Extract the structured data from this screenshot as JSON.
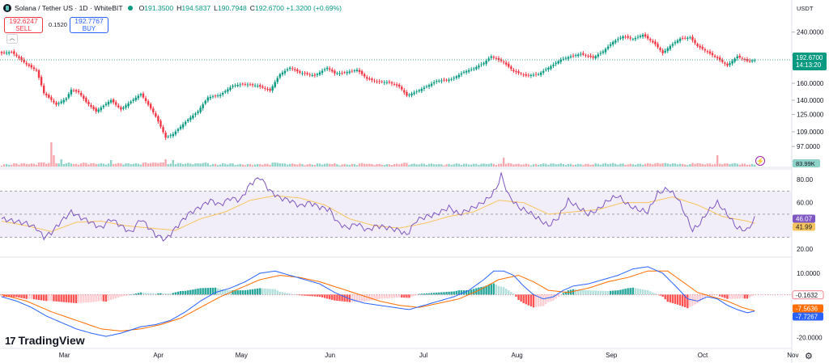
{
  "header": {
    "symbol": "Solana / Tether US · 1D · WhiteBIT",
    "o_label": "O",
    "o_value": "191.3500",
    "h_label": "H",
    "h_value": "194.5837",
    "l_label": "L",
    "l_value": "190.7948",
    "c_label": "C",
    "c_value": "192.6700 +1.3200 (+0.69%)"
  },
  "sell_box": {
    "price": "192.6247",
    "label": "SELL"
  },
  "buy_box": {
    "price": "192.7767",
    "label": "BUY"
  },
  "spread": "0.1520",
  "collapse_icon": "chevron-up-icon",
  "brand": {
    "logo": "tradingview-logo-icon",
    "name": "TradingView"
  },
  "colors": {
    "up": "#089981",
    "down": "#f23645",
    "rsi": "#7e57c2",
    "rsi_ma": "#f7c55f",
    "macd": "#2962ff",
    "signal": "#ff6d00"
  },
  "chart_data": [
    {
      "type": "candlestick",
      "title": "Solana / Tether US · 1D · WhiteBIT",
      "currency": "USDT",
      "scale": "log",
      "x_labels": [
        "Mar",
        "Apr",
        "May",
        "Jun",
        "Jul",
        "Aug",
        "Sep",
        "Oct",
        "Nov"
      ],
      "y_ticks": [
        "240.0000",
        "200.0000",
        "160.0000",
        "140.0000",
        "125.0000",
        "109.0000",
        "97.0000"
      ],
      "ylim": [
        86,
        262
      ],
      "last_price": "192.6700",
      "countdown": "14:13:20",
      "anchors": [
        [
          0,
          203
        ],
        [
          4,
          205
        ],
        [
          10,
          186
        ],
        [
          14,
          177
        ],
        [
          17,
          148
        ],
        [
          22,
          135
        ],
        [
          26,
          142
        ],
        [
          28,
          152
        ],
        [
          31,
          149
        ],
        [
          34,
          138
        ],
        [
          38,
          128
        ],
        [
          44,
          140
        ],
        [
          48,
          130
        ],
        [
          56,
          147
        ],
        [
          62,
          123
        ],
        [
          66,
          104
        ],
        [
          69,
          107
        ],
        [
          75,
          120
        ],
        [
          79,
          128
        ],
        [
          83,
          143
        ],
        [
          88,
          146
        ],
        [
          93,
          157
        ],
        [
          97,
          159
        ],
        [
          103,
          157
        ],
        [
          108,
          151
        ],
        [
          112,
          172
        ],
        [
          116,
          181
        ],
        [
          120,
          174
        ],
        [
          126,
          170
        ],
        [
          131,
          181
        ],
        [
          134,
          173
        ],
        [
          138,
          174
        ],
        [
          143,
          178
        ],
        [
          147,
          166
        ],
        [
          151,
          162
        ],
        [
          156,
          161
        ],
        [
          160,
          156
        ],
        [
          163,
          145
        ],
        [
          167,
          150
        ],
        [
          171,
          156
        ],
        [
          175,
          163
        ],
        [
          181,
          165
        ],
        [
          186,
          175
        ],
        [
          190,
          180
        ],
        [
          194,
          188
        ],
        [
          197,
          198
        ],
        [
          202,
          189
        ],
        [
          206,
          176
        ],
        [
          211,
          170
        ],
        [
          216,
          172
        ],
        [
          221,
          183
        ],
        [
          225,
          193
        ],
        [
          229,
          198
        ],
        [
          233,
          202
        ],
        [
          238,
          196
        ],
        [
          242,
          206
        ],
        [
          246,
          222
        ],
        [
          250,
          232
        ],
        [
          254,
          227
        ],
        [
          258,
          235
        ],
        [
          263,
          218
        ],
        [
          266,
          203
        ],
        [
          269,
          215
        ],
        [
          273,
          228
        ],
        [
          277,
          230
        ],
        [
          280,
          215
        ],
        [
          284,
          205
        ],
        [
          288,
          195
        ],
        [
          292,
          184
        ],
        [
          296,
          198
        ],
        [
          300,
          191
        ],
        [
          303,
          192
        ]
      ],
      "last_index": 303
    },
    {
      "type": "bar",
      "title": "Volume",
      "value_label": "83.99K"
    },
    {
      "type": "line",
      "title": "RSI",
      "y_ticks": [
        "80.00",
        "60.00",
        "40.00",
        "20.00"
      ],
      "ylim": [
        15,
        87
      ],
      "bands": [
        30,
        50,
        70
      ],
      "series": [
        {
          "name": "RSI",
          "value_label": "46.07",
          "anchors": [
            [
              0,
              46
            ],
            [
              5,
              44
            ],
            [
              10,
              42
            ],
            [
              14,
              38
            ],
            [
              17,
              30
            ],
            [
              20,
              34
            ],
            [
              24,
              44
            ],
            [
              28,
              52
            ],
            [
              31,
              48
            ],
            [
              35,
              44
            ],
            [
              40,
              38
            ],
            [
              44,
              46
            ],
            [
              48,
              40
            ],
            [
              52,
              34
            ],
            [
              56,
              46
            ],
            [
              62,
              32
            ],
            [
              66,
              28
            ],
            [
              70,
              38
            ],
            [
              75,
              50
            ],
            [
              79,
              55
            ],
            [
              84,
              62
            ],
            [
              88,
              58
            ],
            [
              92,
              64
            ],
            [
              96,
              62
            ],
            [
              100,
              76
            ],
            [
              104,
              82
            ],
            [
              108,
              70
            ],
            [
              112,
              64
            ],
            [
              116,
              62
            ],
            [
              120,
              57
            ],
            [
              124,
              60
            ],
            [
              128,
              56
            ],
            [
              132,
              54
            ],
            [
              135,
              43
            ],
            [
              139,
              38
            ],
            [
              143,
              42
            ],
            [
              147,
              36
            ],
            [
              151,
              40
            ],
            [
              156,
              38
            ],
            [
              160,
              36
            ],
            [
              163,
              32
            ],
            [
              167,
              45
            ],
            [
              171,
              48
            ],
            [
              175,
              50
            ],
            [
              180,
              56
            ],
            [
              184,
              50
            ],
            [
              188,
              54
            ],
            [
              192,
              58
            ],
            [
              196,
              64
            ],
            [
              199,
              72
            ],
            [
              201,
              84
            ],
            [
              204,
              66
            ],
            [
              208,
              56
            ],
            [
              212,
              52
            ],
            [
              216,
              46
            ],
            [
              220,
              40
            ],
            [
              224,
              47
            ],
            [
              228,
              62
            ],
            [
              232,
              56
            ],
            [
              236,
              50
            ],
            [
              240,
              54
            ],
            [
              244,
              62
            ],
            [
              248,
              66
            ],
            [
              252,
              58
            ],
            [
              256,
              54
            ],
            [
              260,
              52
            ],
            [
              264,
              68
            ],
            [
              268,
              72
            ],
            [
              272,
              64
            ],
            [
              275,
              50
            ],
            [
              278,
              36
            ],
            [
              281,
              42
            ],
            [
              284,
              52
            ],
            [
              288,
              60
            ],
            [
              292,
              50
            ],
            [
              296,
              38
            ],
            [
              300,
              36
            ],
            [
              303,
              46
            ]
          ]
        },
        {
          "name": "RSI-based MA",
          "value_label": "41.99",
          "anchors": [
            [
              0,
              44
            ],
            [
              10,
              40
            ],
            [
              20,
              35
            ],
            [
              30,
              43
            ],
            [
              40,
              44
            ],
            [
              50,
              40
            ],
            [
              60,
              38
            ],
            [
              70,
              36
            ],
            [
              80,
              46
            ],
            [
              90,
              52
            ],
            [
              100,
              62
            ],
            [
              110,
              66
            ],
            [
              120,
              64
            ],
            [
              130,
              58
            ],
            [
              140,
              46
            ],
            [
              150,
              40
            ],
            [
              160,
              38
            ],
            [
              170,
              42
            ],
            [
              180,
              48
            ],
            [
              190,
              52
            ],
            [
              200,
              62
            ],
            [
              210,
              60
            ],
            [
              220,
              50
            ],
            [
              230,
              52
            ],
            [
              240,
              54
            ],
            [
              250,
              60
            ],
            [
              260,
              60
            ],
            [
              270,
              65
            ],
            [
              280,
              58
            ],
            [
              290,
              48
            ],
            [
              300,
              44
            ],
            [
              303,
              42
            ]
          ]
        }
      ]
    },
    {
      "type": "line",
      "title": "MACD",
      "y_ticks": [
        "10.0000",
        "0.0000",
        "-10.0000",
        "-20.0000"
      ],
      "ylim": [
        -24,
        16
      ],
      "series": [
        {
          "name": "MACD",
          "value_label": "-7.7267",
          "anchors": [
            [
              0,
              -1
            ],
            [
              6,
              -3
            ],
            [
              12,
              -6
            ],
            [
              18,
              -10
            ],
            [
              24,
              -13
            ],
            [
              30,
              -16
            ],
            [
              36,
              -18
            ],
            [
              42,
              -19.5
            ],
            [
              48,
              -18
            ],
            [
              56,
              -15
            ],
            [
              62,
              -14
            ],
            [
              68,
              -12
            ],
            [
              74,
              -8
            ],
            [
              80,
              -3
            ],
            [
              86,
              1
            ],
            [
              92,
              3
            ],
            [
              98,
              6
            ],
            [
              104,
              10
            ],
            [
              110,
              11
            ],
            [
              116,
              9
            ],
            [
              122,
              7
            ],
            [
              128,
              5
            ],
            [
              134,
              1
            ],
            [
              140,
              -2
            ],
            [
              146,
              -4
            ],
            [
              152,
              -5
            ],
            [
              158,
              -6
            ],
            [
              164,
              -7
            ],
            [
              170,
              -5
            ],
            [
              176,
              -3
            ],
            [
              182,
              -1
            ],
            [
              188,
              2
            ],
            [
              194,
              7
            ],
            [
              198,
              11
            ],
            [
              202,
              11
            ],
            [
              206,
              9
            ],
            [
              210,
              4
            ],
            [
              214,
              0
            ],
            [
              218,
              -2
            ],
            [
              222,
              -1
            ],
            [
              226,
              2
            ],
            [
              230,
              4
            ],
            [
              236,
              5
            ],
            [
              242,
              7
            ],
            [
              248,
              9
            ],
            [
              254,
              12
            ],
            [
              260,
              13
            ],
            [
              266,
              10
            ],
            [
              272,
              3
            ],
            [
              276,
              -2
            ],
            [
              280,
              -3
            ],
            [
              284,
              -1
            ],
            [
              288,
              -2
            ],
            [
              292,
              -5
            ],
            [
              296,
              -7
            ],
            [
              300,
              -8.5
            ],
            [
              303,
              -7.7
            ]
          ]
        },
        {
          "name": "Signal",
          "value_label": "-7.5636",
          "anchors": [
            [
              0,
              0
            ],
            [
              10,
              -3
            ],
            [
              20,
              -8
            ],
            [
              30,
              -12
            ],
            [
              40,
              -16
            ],
            [
              48,
              -17
            ],
            [
              56,
              -16
            ],
            [
              64,
              -14
            ],
            [
              72,
              -11
            ],
            [
              80,
              -6
            ],
            [
              88,
              -1
            ],
            [
              96,
              3
            ],
            [
              104,
              7
            ],
            [
              112,
              9
            ],
            [
              120,
              8
            ],
            [
              128,
              6
            ],
            [
              136,
              3
            ],
            [
              144,
              0
            ],
            [
              152,
              -3
            ],
            [
              160,
              -5
            ],
            [
              168,
              -6
            ],
            [
              176,
              -4
            ],
            [
              184,
              -2
            ],
            [
              192,
              2
            ],
            [
              200,
              7
            ],
            [
              208,
              9
            ],
            [
              214,
              6
            ],
            [
              220,
              2
            ],
            [
              228,
              1
            ],
            [
              236,
              3
            ],
            [
              244,
              6
            ],
            [
              252,
              8
            ],
            [
              260,
              11
            ],
            [
              268,
              11
            ],
            [
              274,
              6
            ],
            [
              280,
              1
            ],
            [
              286,
              -1
            ],
            [
              292,
              -3
            ],
            [
              298,
              -6
            ],
            [
              303,
              -7.56
            ]
          ]
        },
        {
          "name": "Histogram",
          "value_label": "-0.1632"
        }
      ]
    }
  ]
}
